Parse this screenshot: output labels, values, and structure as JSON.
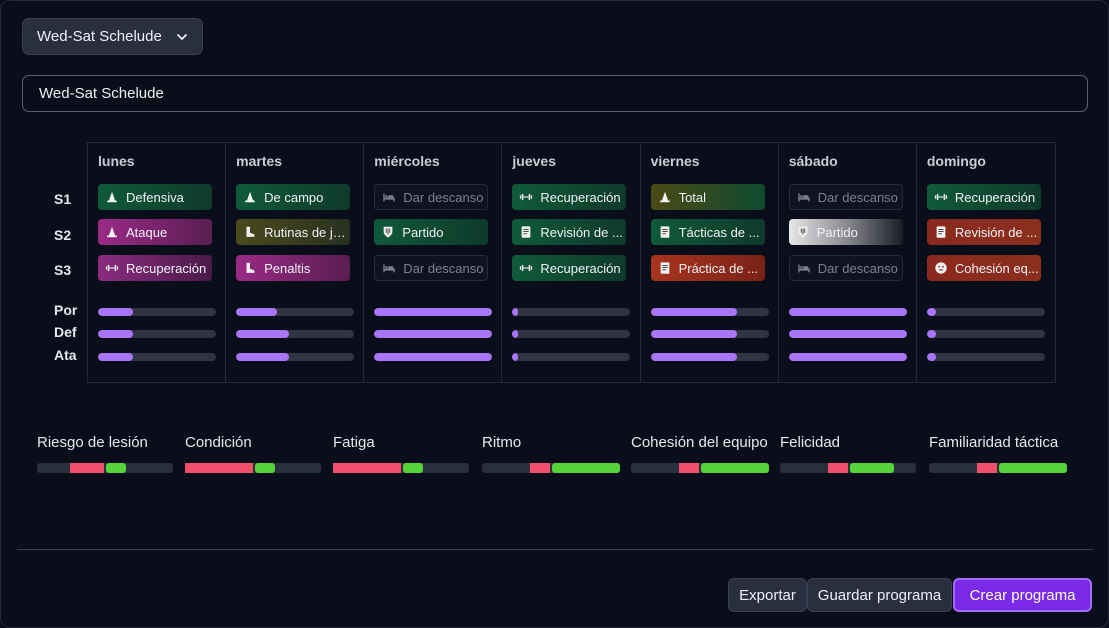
{
  "preset_dropdown": {
    "label": "Wed-Sat Schelude"
  },
  "program_name": {
    "value": "Wed-Sat Schelude"
  },
  "row_labels": {
    "sessions": [
      "S1",
      "S2",
      "S3"
    ],
    "positions": [
      "Por",
      "Def",
      "Ata"
    ]
  },
  "days": [
    {
      "name": "lunes",
      "sessions": [
        {
          "label": "Defensiva",
          "icon": "cone-icon",
          "style": "c-green"
        },
        {
          "label": "Ataque",
          "icon": "cone-icon",
          "style": "c-magenta"
        },
        {
          "label": "Recuperación",
          "icon": "dumbbell-icon",
          "style": "c-magenta2"
        }
      ],
      "levels": [
        0.3,
        0.3,
        0.3
      ]
    },
    {
      "name": "martes",
      "sessions": [
        {
          "label": "De campo",
          "icon": "cone-icon",
          "style": "c-green"
        },
        {
          "label": "Rutinas de ju...",
          "icon": "boot-icon",
          "style": "c-olive-dark"
        },
        {
          "label": "Penaltis",
          "icon": "boot-icon",
          "style": "c-magenta"
        }
      ],
      "levels": [
        0.35,
        0.45,
        0.45
      ]
    },
    {
      "name": "miércoles",
      "sessions": [
        {
          "label": "Dar descanso",
          "icon": "bed-icon",
          "style": "c-rest"
        },
        {
          "label": "Partido",
          "icon": "shield-icon",
          "style": "c-green"
        },
        {
          "label": "Dar descanso",
          "icon": "bed-icon",
          "style": "c-rest"
        }
      ],
      "levels": [
        1.0,
        1.0,
        1.0
      ]
    },
    {
      "name": "jueves",
      "sessions": [
        {
          "label": "Recuperación",
          "icon": "dumbbell-icon",
          "style": "c-green"
        },
        {
          "label": "Revisión de ...",
          "icon": "document-icon",
          "style": "c-green"
        },
        {
          "label": "Recuperación",
          "icon": "dumbbell-icon",
          "style": "c-green"
        }
      ],
      "levels": [
        0.04,
        0.04,
        0.04
      ]
    },
    {
      "name": "viernes",
      "sessions": [
        {
          "label": "Total",
          "icon": "cone-icon",
          "style": "c-olive-green"
        },
        {
          "label": "Tácticas de ...",
          "icon": "document-icon",
          "style": "c-green"
        },
        {
          "label": "Práctica de ...",
          "icon": "document-icon",
          "style": "c-red"
        }
      ],
      "levels": [
        0.73,
        0.73,
        0.73
      ]
    },
    {
      "name": "sábado",
      "sessions": [
        {
          "label": "Dar descanso",
          "icon": "bed-icon",
          "style": "c-rest"
        },
        {
          "label": "Partido",
          "icon": "shield-icon",
          "style": "c-white"
        },
        {
          "label": "Dar descanso",
          "icon": "bed-icon",
          "style": "c-rest"
        }
      ],
      "levels": [
        1.0,
        1.0,
        1.0
      ]
    },
    {
      "name": "domingo",
      "sessions": [
        {
          "label": "Recuperación",
          "icon": "dumbbell-icon",
          "style": "c-green"
        },
        {
          "label": "Revisión de ...",
          "icon": "document-icon",
          "style": "c-red2"
        },
        {
          "label": "Cohesión eq...",
          "icon": "smiley-icon",
          "style": "c-red2"
        }
      ],
      "levels": [
        0.08,
        0.08,
        0.08
      ]
    }
  ],
  "metrics": [
    {
      "label": "Riesgo de lesión",
      "neg": 0.25,
      "pos": 0.15,
      "neg_start": 0.24
    },
    {
      "label": "Condición",
      "neg": 0.5,
      "pos": 0.15,
      "neg_start": 0.0
    },
    {
      "label": "Fatiga",
      "neg": 0.5,
      "pos": 0.15,
      "neg_start": 0.0
    },
    {
      "label": "Ritmo",
      "neg": 0.15,
      "pos": 0.5,
      "neg_start": 0.35
    },
    {
      "label": "Cohesión del equipo",
      "neg": 0.15,
      "pos": 0.5,
      "neg_start": 0.35
    },
    {
      "label": "Felicidad",
      "neg": 0.15,
      "pos": 0.32,
      "neg_start": 0.35
    },
    {
      "label": "Familiaridad táctica",
      "neg": 0.15,
      "pos": 0.5,
      "neg_start": 0.35
    }
  ],
  "buttons": {
    "export": "Exportar",
    "save": "Guardar programa",
    "create": "Crear programa"
  }
}
